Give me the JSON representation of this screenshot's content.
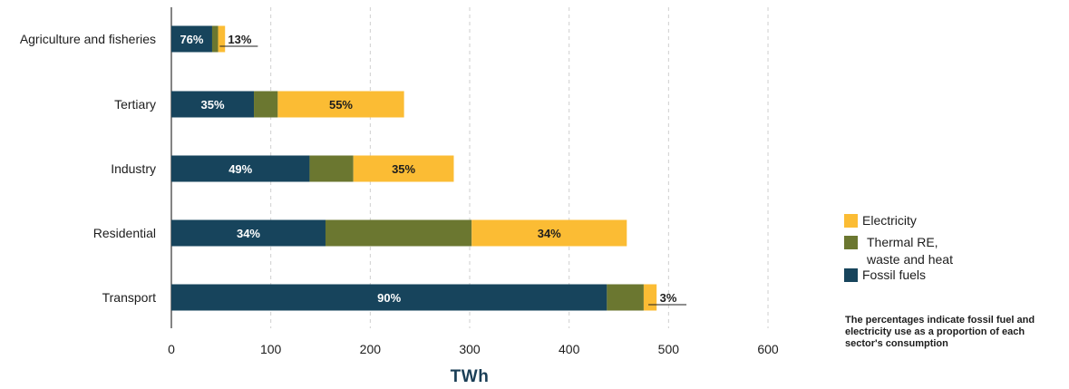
{
  "chart_data": {
    "type": "bar",
    "orientation": "horizontal",
    "stacked": true,
    "categories": [
      "Agriculture and fisheries",
      "Tertiary",
      "Industry",
      "Residential",
      "Transport"
    ],
    "series": [
      {
        "name": "Fossil fuels",
        "color": "#17445c",
        "values": [
          41,
          83,
          139,
          155,
          438
        ]
      },
      {
        "name": "Thermal RE, waste and heat",
        "color": "#6b7730",
        "values": [
          6,
          24,
          44,
          147,
          37
        ]
      },
      {
        "name": "Electricity",
        "color": "#fbbc34",
        "values": [
          7,
          127,
          101,
          156,
          13
        ]
      }
    ],
    "bar_labels": {
      "fossil": [
        "76%",
        "35%",
        "49%",
        "34%",
        "90%"
      ],
      "electricity": [
        "13%",
        "55%",
        "35%",
        "34%",
        "3%"
      ]
    },
    "xlabel": "TWh",
    "xlim": [
      0,
      600
    ],
    "xticks": [
      "0",
      "100",
      "200",
      "300",
      "400",
      "500",
      "600"
    ],
    "grid": true,
    "legend_placement": "right",
    "legend": [
      {
        "label": "Electricity",
        "color": "#fbbc34"
      },
      {
        "label": "Thermal RE,\nwaste and heat",
        "color": "#6b7730"
      },
      {
        "label": "Fossil fuels",
        "color": "#17445c"
      }
    ],
    "note": "The percentages indicate fossil fuel and electricity use as a proportion of each sector's consumption"
  }
}
